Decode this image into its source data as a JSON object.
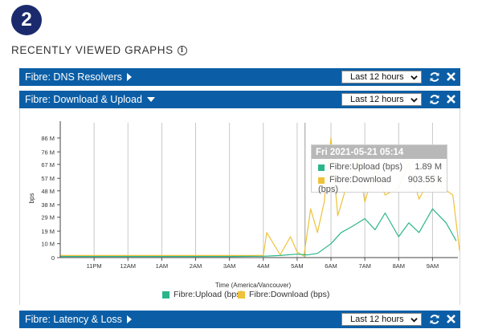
{
  "step": {
    "number": "2"
  },
  "section": {
    "title": "RECENTLY VIEWED GRAPHS",
    "info_icon": "info-icon"
  },
  "panels": [
    {
      "title": "Fibre: DNS Resolvers",
      "range": "Last 12 hours",
      "expanded": false
    },
    {
      "title": "Fibre: Download & Upload",
      "range": "Last 12 hours",
      "expanded": true
    },
    {
      "title": "Fibre: Latency & Loss",
      "range": "Last 12 hours",
      "expanded": false
    }
  ],
  "colors": {
    "header": "#0b5ea6",
    "upload": "#2bb58a",
    "download": "#eec23a",
    "badge": "#1a2a6c"
  },
  "tooltip": {
    "header": "Fri 2021-05-21 05:14",
    "rows": [
      {
        "label": "Fibre:Upload (bps)",
        "value": "1.89 M"
      },
      {
        "label": "Fibre:Download",
        "label2": "(bps)",
        "value": "903.55 k"
      }
    ]
  },
  "chart_data": {
    "type": "line",
    "xlabel": "Time (America/Vancouver)",
    "ylabel": "bps",
    "x_ticks": [
      "11PM",
      "12AM",
      "1AM",
      "2AM",
      "3AM",
      "4AM",
      "5AM",
      "6AM",
      "7AM",
      "8AM",
      "9AM"
    ],
    "y_ticks": [
      "0",
      "10 M",
      "19 M",
      "29 M",
      "38 M",
      "48 M",
      "57 M",
      "67 M",
      "76 M",
      "86 M"
    ],
    "ylim": [
      0,
      90
    ],
    "grid": true,
    "legend_position": "bottom",
    "series": [
      {
        "name": "Fibre:Upload (bps)",
        "x": [
          22.0,
          23.0,
          0.0,
          1.0,
          2.0,
          3.0,
          4.0,
          4.5,
          5.0,
          5.3,
          5.6,
          6.0,
          6.3,
          6.6,
          7.0,
          7.3,
          7.6,
          8.0,
          8.3,
          8.6,
          9.0,
          9.4,
          9.7
        ],
        "values": [
          0.8,
          0.8,
          0.8,
          0.8,
          0.8,
          0.8,
          1.0,
          1.5,
          2.5,
          1.9,
          3.0,
          10,
          18,
          22,
          28,
          20,
          32,
          15,
          25,
          18,
          35,
          25,
          12
        ]
      },
      {
        "name": "Fibre:Download (bps)",
        "x": [
          22.0,
          23.0,
          0.0,
          1.0,
          2.0,
          3.0,
          4.0,
          4.1,
          4.5,
          4.8,
          5.0,
          5.2,
          5.4,
          5.6,
          5.8,
          6.0,
          6.2,
          6.5,
          6.8,
          7.0,
          7.3,
          7.6,
          8.0,
          8.3,
          8.6,
          9.0,
          9.3,
          9.6,
          9.8
        ],
        "values": [
          1.5,
          1.5,
          1.5,
          1.5,
          1.5,
          1.5,
          1.5,
          18,
          2,
          15,
          4,
          1,
          35,
          18,
          40,
          86,
          30,
          55,
          70,
          40,
          65,
          45,
          50,
          68,
          42,
          60,
          50,
          45,
          5
        ]
      }
    ]
  }
}
